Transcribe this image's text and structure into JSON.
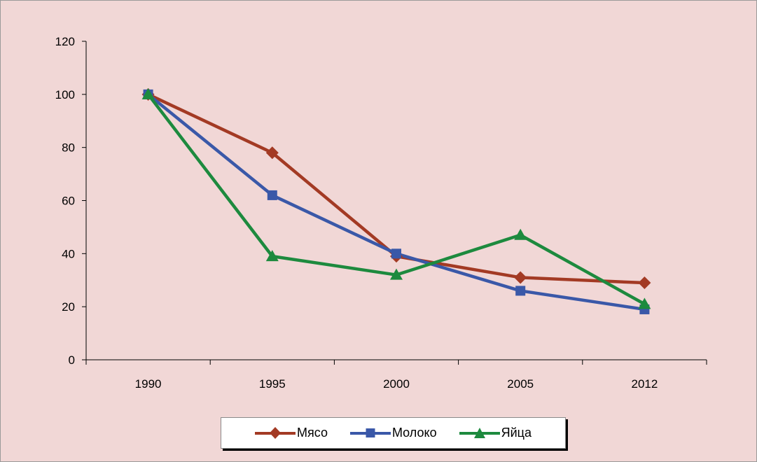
{
  "chart_data": {
    "type": "line",
    "categories": [
      "1990",
      "1995",
      "2000",
      "2005",
      "2012"
    ],
    "series": [
      {
        "name": "Мясо",
        "values": [
          100,
          78,
          39,
          31,
          29
        ],
        "color": "#a33a24",
        "marker": "diamond"
      },
      {
        "name": "Молоко",
        "values": [
          100,
          62,
          40,
          26,
          19
        ],
        "color": "#3a58a8",
        "marker": "square"
      },
      {
        "name": "Яйца",
        "values": [
          100,
          39,
          32,
          47,
          21
        ],
        "color": "#1d8a3e",
        "marker": "triangle"
      }
    ],
    "yticks": [
      "0",
      "20",
      "40",
      "60",
      "80",
      "100",
      "120"
    ],
    "ylim": [
      0,
      120
    ],
    "grid": false,
    "legend_position": "bottom"
  }
}
